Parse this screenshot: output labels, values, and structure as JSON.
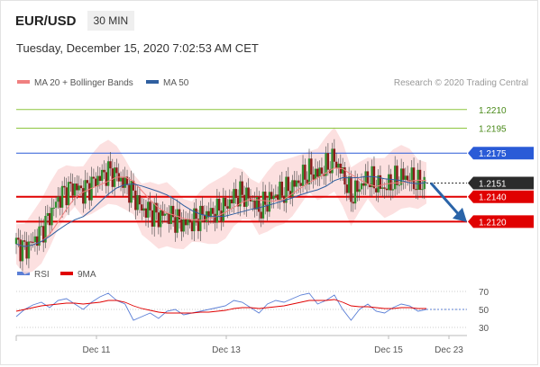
{
  "header": {
    "pair": "EUR/USD",
    "interval": "30 MIN",
    "datetime": "Tuesday, December 15, 2020 7:02:53 AM CET"
  },
  "legend": {
    "ma20": "MA 20 + Bollinger Bands",
    "ma50": "MA 50",
    "credit": "Research © 2020 Trading Central",
    "rsi": "RSI",
    "ma9": "9MA"
  },
  "colors": {
    "ma20": "#f08080",
    "ma50": "#3060a0",
    "bollinger": "#fbdada",
    "resistance": "#8dc63f",
    "pivot": "#2a5bd7",
    "support": "#e00000",
    "last": "#333333",
    "rsi": "#5b7fd6",
    "rsi_ma": "#e00000"
  },
  "chart_data": [
    {
      "type": "candlestick",
      "title": "",
      "x_ticks": [
        "Dec 11",
        "Dec 13",
        "Dec 15",
        "Dec 23"
      ],
      "y_range": [
        1.2095,
        1.2225
      ],
      "levels": [
        {
          "label": "1.2210",
          "value": 1.221,
          "kind": "resistance"
        },
        {
          "label": "1.2195",
          "value": 1.2195,
          "kind": "resistance"
        },
        {
          "label": "1.2175",
          "value": 1.2175,
          "kind": "pivot"
        },
        {
          "label": "1.2151",
          "value": 1.2151,
          "kind": "last"
        },
        {
          "label": "1.2140",
          "value": 1.214,
          "kind": "support"
        },
        {
          "label": "1.2120",
          "value": 1.212,
          "kind": "support"
        }
      ],
      "series": [
        {
          "name": "MA 20 + Bollinger Bands",
          "kind": "ma20"
        },
        {
          "name": "MA 50",
          "kind": "ma50"
        }
      ],
      "price_path": [
        1.2102,
        1.2098,
        1.2104,
        1.2112,
        1.2125,
        1.2138,
        1.2145,
        1.2148,
        1.2144,
        1.215,
        1.2156,
        1.216,
        1.2157,
        1.215,
        1.2142,
        1.213,
        1.2128,
        1.2124,
        1.2126,
        1.2122,
        1.2118,
        1.212,
        1.2124,
        1.2126,
        1.2128,
        1.2132,
        1.214,
        1.2142,
        1.2138,
        1.213,
        1.2136,
        1.2142,
        1.2144,
        1.2148,
        1.2154,
        1.216,
        1.2158,
        1.2164,
        1.217,
        1.2158,
        1.214,
        1.2148,
        1.2155,
        1.215,
        1.2147,
        1.2152,
        1.2156,
        1.2155,
        1.215,
        1.2151
      ]
    },
    {
      "type": "line",
      "title": "",
      "y_ticks": [
        70,
        50,
        30
      ],
      "y_range": [
        25,
        75
      ],
      "series": [
        {
          "name": "RSI",
          "kind": "rsi",
          "values": [
            42,
            50,
            55,
            58,
            52,
            60,
            62,
            56,
            50,
            58,
            64,
            68,
            60,
            56,
            38,
            42,
            46,
            40,
            48,
            50,
            44,
            46,
            48,
            50,
            52,
            54,
            60,
            58,
            52,
            46,
            56,
            60,
            58,
            62,
            66,
            68,
            56,
            60,
            66,
            50,
            38,
            50,
            56,
            48,
            46,
            52,
            56,
            54,
            48,
            50
          ]
        },
        {
          "name": "9MA",
          "kind": "rsi_ma",
          "values": [
            48,
            50,
            52,
            54,
            55,
            56,
            57,
            57,
            56,
            57,
            58,
            60,
            60,
            58,
            54,
            51,
            49,
            47,
            46,
            46,
            46,
            46,
            47,
            47,
            48,
            49,
            51,
            52,
            52,
            51,
            52,
            53,
            54,
            56,
            58,
            60,
            60,
            60,
            61,
            58,
            54,
            53,
            53,
            52,
            51,
            51,
            52,
            52,
            51,
            51
          ]
        }
      ]
    }
  ]
}
